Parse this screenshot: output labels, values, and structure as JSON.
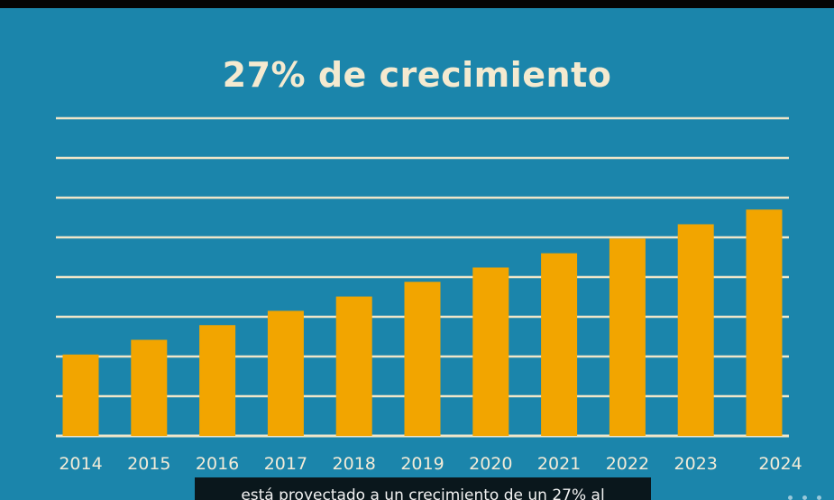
{
  "video": {
    "caption": "está proyectado a un crecimiento de un 27% al"
  },
  "colors": {
    "background": "#1b85ab",
    "bar": "#f2a500",
    "gridline": "#efe6c9",
    "title": "#f4ead0",
    "tick_label": "#f3ecd8"
  },
  "chart_data": {
    "type": "bar",
    "title": "27% de crecimiento",
    "xlabel": "",
    "ylabel": "",
    "categories": [
      "2014",
      "2015",
      "2016",
      "2017",
      "2018",
      "2019",
      "2020",
      "2021",
      "2022",
      "2023",
      "2024"
    ],
    "values": [
      2.05,
      2.42,
      2.79,
      3.15,
      3.51,
      3.88,
      4.24,
      4.6,
      4.97,
      5.33,
      5.7
    ],
    "ylim": [
      0,
      8
    ],
    "grid": true,
    "legend": "none"
  }
}
